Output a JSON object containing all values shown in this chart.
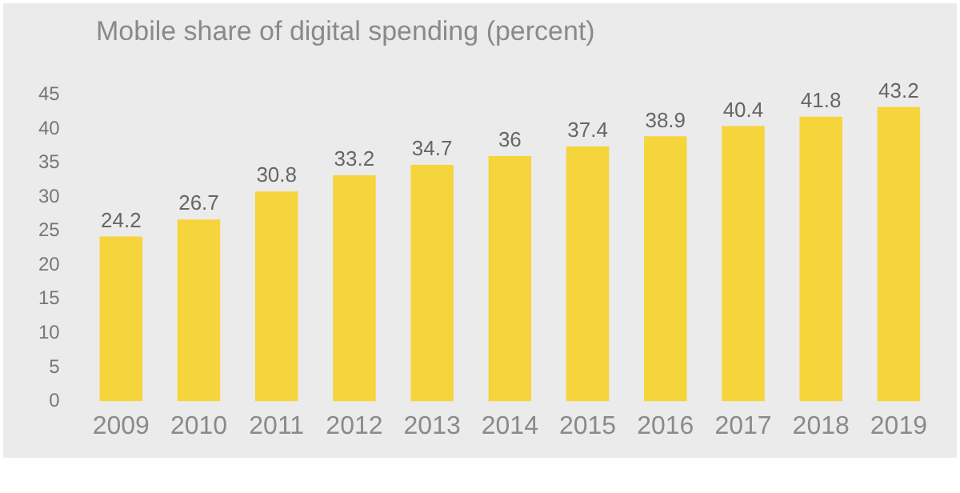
{
  "chart_data": {
    "type": "bar",
    "title": "Mobile share of digital spending (percent)",
    "categories": [
      "2009",
      "2010",
      "2011",
      "2012",
      "2013",
      "2014",
      "2015",
      "2016",
      "2017",
      "2018",
      "2019"
    ],
    "values": [
      24.2,
      26.7,
      30.8,
      33.2,
      34.7,
      36,
      37.4,
      38.9,
      40.4,
      41.8,
      43.2
    ],
    "color": "#f6d43c",
    "ylim": [
      0,
      45
    ],
    "yticks": [
      0,
      5,
      10,
      15,
      20,
      25,
      30,
      35,
      40,
      45
    ],
    "grid": false,
    "data_labels": true
  }
}
